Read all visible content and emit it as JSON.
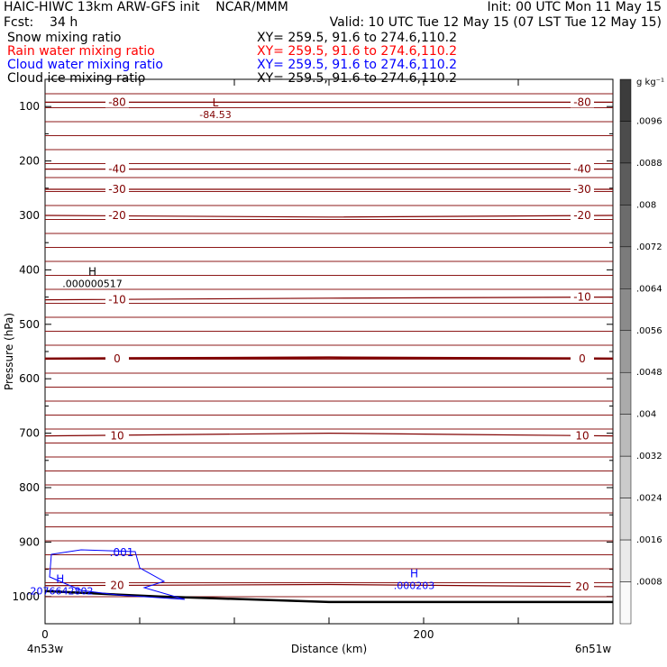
{
  "header": {
    "line1_left": "HAIC-HIWC 13km ARW-GFS init    NCAR/MMM",
    "line1_right": "Init: 00 UTC Mon 11 May 15",
    "fcst": "Fcst:    34 h",
    "valid": "Valid: 10 UTC Tue 12 May 15 (07 LST Tue 12 May 15)",
    "fields": [
      {
        "name": "Snow mixing ratio",
        "xy": "XY= 259.5, 91.6 to 274.6,110.2",
        "color": "#000000"
      },
      {
        "name": "Rain water mixing ratio",
        "xy": "XY= 259.5, 91.6 to 274.6,110.2",
        "color": "#ff0000"
      },
      {
        "name": "Cloud water mixing ratio",
        "xy": "XY= 259.5, 91.6 to 274.6,110.2",
        "color": "#0000ff"
      },
      {
        "name": "Cloud ice mixing ratio",
        "xy": "XY= 259.5, 91.6 to 274.6,110.2",
        "color": "#000000"
      }
    ]
  },
  "chart_data": {
    "type": "contour",
    "xlabel": "Distance (km)",
    "ylabel": "Pressure (hPa)",
    "xlim": [
      0,
      300
    ],
    "ylim": [
      1050,
      50
    ],
    "x_ticks": [
      {
        "value": 0,
        "label": "0"
      },
      {
        "value": 200,
        "label": "200"
      }
    ],
    "y_ticks": [
      100,
      200,
      300,
      400,
      500,
      600,
      700,
      800,
      900,
      1000
    ],
    "x_end_labels": {
      "left": "4n53w",
      "right": "6n51w"
    },
    "colorbar": {
      "unit": "g kg⁻¹",
      "labels": [
        ".0096",
        ".0088",
        ".008",
        ".0072",
        ".0064",
        ".0056",
        ".0048",
        ".004",
        ".0032",
        ".0024",
        ".0016",
        ".0008"
      ]
    },
    "isotherms_label_color": "#800000",
    "isotherms": [
      {
        "label": "-80",
        "p": [
          92,
          92,
          92
        ]
      },
      {
        "label": "-40",
        "p": [
          215,
          215,
          215
        ]
      },
      {
        "label": "-30",
        "p": [
          252,
          252,
          252
        ]
      },
      {
        "label": "-20",
        "p": [
          300,
          303,
          300
        ]
      },
      {
        "label": "-10",
        "p": [
          455,
          452,
          450
        ]
      },
      {
        "label": "0",
        "p": [
          563,
          561,
          563
        ]
      },
      {
        "label": "10",
        "p": [
          705,
          700,
          705
        ]
      },
      {
        "label": "20",
        "p": [
          980,
          978,
          982
        ]
      }
    ],
    "extrema": [
      {
        "type": "L",
        "value": "-84.53",
        "x": 90,
        "p": 100,
        "color": "#800000"
      },
      {
        "type": "H",
        "value": ".000000517",
        "x": 25,
        "p": 410,
        "color": "#000000"
      },
      {
        "type": "H",
        "value": ".000203",
        "x": 195,
        "p": 965,
        "color": "#0000ff"
      },
      {
        "type": "H",
        "value": ".2076642802",
        "x": 8,
        "p": 975,
        "color": "#0000ff"
      }
    ],
    "cloud_water_contour_label": ".001"
  }
}
